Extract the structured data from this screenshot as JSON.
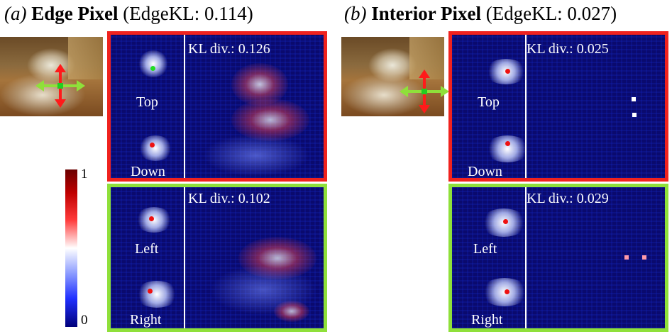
{
  "panel_a": {
    "title_prefix": "(a)",
    "title_bold": "Edge Pixel",
    "title_metric": "(EdgeKL: 0.114)",
    "vertical": {
      "label_top": "Top",
      "label_bottom": "Down",
      "kl": "KL div.: 0.126",
      "border_color": "#f0221e"
    },
    "horizontal": {
      "label_top": "Left",
      "label_bottom": "Right",
      "kl": "KL div.: 0.102",
      "border_color": "#8fe03a"
    }
  },
  "panel_b": {
    "title_prefix": "(b)",
    "title_bold": "Interior Pixel",
    "title_metric": "(EdgeKL: 0.027)",
    "vertical": {
      "label_top": "Top",
      "label_bottom": "Down",
      "kl": "KL div.: 0.025",
      "border_color": "#f0221e"
    },
    "horizontal": {
      "label_top": "Left",
      "label_bottom": "Right",
      "kl": "KL div.: 0.029",
      "border_color": "#8fe03a"
    }
  },
  "colorbar": {
    "max_label": "1",
    "min_label": "0"
  },
  "icons": {
    "vertical_arrow": "red-double-arrow-icon",
    "horizontal_arrow": "green-double-arrow-icon"
  }
}
